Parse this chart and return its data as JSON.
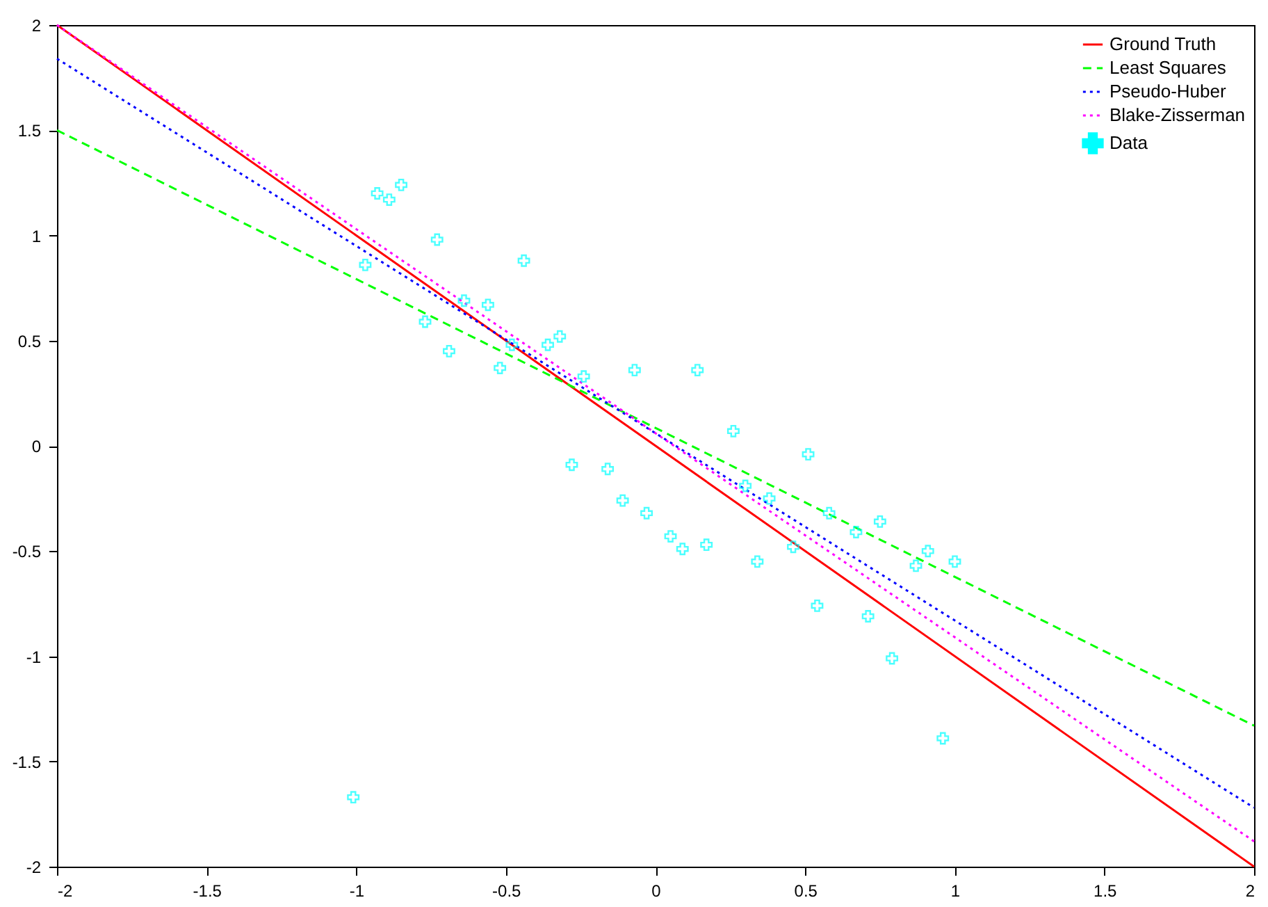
{
  "chart_data": {
    "type": "line",
    "xlim": [
      -2,
      2
    ],
    "ylim": [
      -2,
      2
    ],
    "xticks": [
      -2,
      -1.5,
      -1,
      -0.5,
      0,
      0.5,
      1,
      1.5,
      2
    ],
    "yticks": [
      -2,
      -1.5,
      -1,
      -0.5,
      0,
      0.5,
      1,
      1.5,
      2
    ],
    "grid": false,
    "legend": "top right",
    "series": [
      {
        "name": "Ground Truth",
        "color": "#ff0000",
        "line_style": "solid",
        "x": [
          -2,
          2
        ],
        "values": [
          2,
          -2
        ]
      },
      {
        "name": "Least Squares",
        "color": "#00ff00",
        "line_style": "dashed",
        "x": [
          -2,
          2
        ],
        "values": [
          1.5,
          -1.33
        ]
      },
      {
        "name": "Pseudo-Huber",
        "color": "#0000ff",
        "line_style": "dotted",
        "x": [
          -2,
          2
        ],
        "values": [
          1.84,
          -1.72
        ]
      },
      {
        "name": "Blake-Zisserman",
        "color": "#ff00ff",
        "line_style": "dotted",
        "x": [
          -2,
          2
        ],
        "values": [
          2,
          -1.88
        ]
      },
      {
        "name": "Data",
        "type": "scatter",
        "color": "#00ffff",
        "marker": "cross",
        "x": [
          -0.93,
          -0.89,
          -0.85,
          -0.73,
          -0.97,
          -0.77,
          -0.64,
          -0.56,
          -0.44,
          -0.69,
          -0.52,
          -0.48,
          -0.36,
          -0.32,
          -0.24,
          -0.07,
          0.14,
          0.26,
          -0.28,
          -0.16,
          -0.11,
          -0.03,
          0.05,
          0.09,
          0.17,
          0.34,
          0.3,
          0.38,
          0.51,
          0.58,
          0.67,
          0.75,
          0.46,
          0.87,
          0.91,
          1.0,
          0.54,
          0.71,
          0.79,
          0.96,
          -1.01
        ],
        "values": [
          1.2,
          1.17,
          1.24,
          0.98,
          0.86,
          0.59,
          0.69,
          0.67,
          0.88,
          0.45,
          0.37,
          0.48,
          0.48,
          0.52,
          0.33,
          0.36,
          0.36,
          0.07,
          -0.09,
          -0.11,
          -0.26,
          -0.32,
          -0.43,
          -0.49,
          -0.47,
          -0.55,
          -0.19,
          -0.25,
          -0.04,
          -0.32,
          -0.41,
          -0.36,
          -0.48,
          -0.57,
          -0.5,
          -0.55,
          -0.76,
          -0.81,
          -1.01,
          -1.39,
          -1.67
        ]
      }
    ]
  }
}
